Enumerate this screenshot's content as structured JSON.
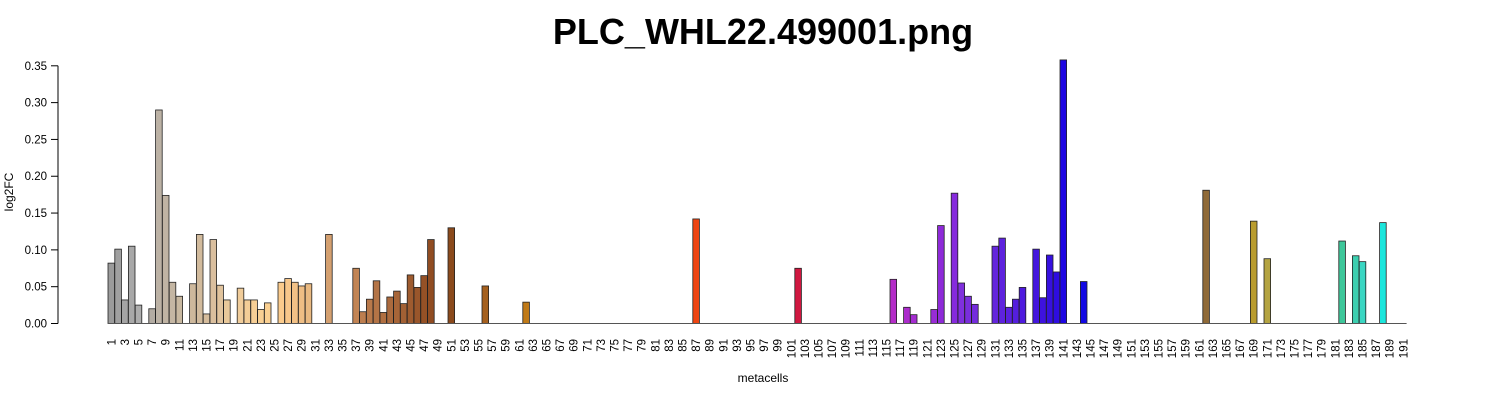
{
  "chart_data": {
    "type": "bar",
    "title": "PLC_WHL22.499001.png",
    "xlabel": "metacells",
    "ylabel": "log2FC",
    "ylim": [
      0,
      0.35
    ],
    "yticks": [
      "0.00",
      "0.05",
      "0.10",
      "0.15",
      "0.20",
      "0.25",
      "0.30",
      "0.35"
    ],
    "n_categories": 191,
    "x_tick_labels": [
      "1",
      "3",
      "5",
      "7",
      "9",
      "11",
      "13",
      "15",
      "17",
      "19",
      "21",
      "23",
      "25",
      "27",
      "29",
      "31",
      "33",
      "35",
      "37",
      "39",
      "41",
      "43",
      "45",
      "47",
      "49",
      "51",
      "53",
      "55",
      "57",
      "59",
      "61",
      "63",
      "65",
      "67",
      "69",
      "71",
      "73",
      "75",
      "77",
      "79",
      "81",
      "83",
      "85",
      "87",
      "89",
      "91",
      "93",
      "95",
      "97",
      "99",
      "101",
      "103",
      "105",
      "107",
      "109",
      "111",
      "113",
      "115",
      "117",
      "119",
      "121",
      "123",
      "125",
      "127",
      "129",
      "131",
      "133",
      "135",
      "137",
      "139",
      "141",
      "143",
      "145",
      "147",
      "149",
      "151",
      "153",
      "155",
      "157",
      "159",
      "161",
      "163",
      "165",
      "167",
      "169",
      "171",
      "173",
      "175",
      "177",
      "179",
      "181",
      "183",
      "185",
      "187",
      "189",
      "191"
    ],
    "bars": [
      {
        "x": 1,
        "y": 0.082,
        "color": "#9b9b9b"
      },
      {
        "x": 2,
        "y": 0.101,
        "color": "#a0a0a0"
      },
      {
        "x": 3,
        "y": 0.032,
        "color": "#a4a4a4"
      },
      {
        "x": 4,
        "y": 0.105,
        "color": "#a8a8a8"
      },
      {
        "x": 5,
        "y": 0.025,
        "color": "#adadad"
      },
      {
        "x": 7,
        "y": 0.02,
        "color": "#b3aca3"
      },
      {
        "x": 8,
        "y": 0.29,
        "color": "#bcb2a5"
      },
      {
        "x": 9,
        "y": 0.174,
        "color": "#c0b4a4"
      },
      {
        "x": 10,
        "y": 0.056,
        "color": "#c4b6a3"
      },
      {
        "x": 11,
        "y": 0.037,
        "color": "#c8b8a0"
      },
      {
        "x": 13,
        "y": 0.054,
        "color": "#cdb89c"
      },
      {
        "x": 14,
        "y": 0.121,
        "color": "#d2bb9d"
      },
      {
        "x": 15,
        "y": 0.013,
        "color": "#d5bc9c"
      },
      {
        "x": 16,
        "y": 0.114,
        "color": "#dabf9e"
      },
      {
        "x": 17,
        "y": 0.052,
        "color": "#e0c39d"
      },
      {
        "x": 18,
        "y": 0.032,
        "color": "#e8c89a"
      },
      {
        "x": 20,
        "y": 0.048,
        "color": "#f0cc9a"
      },
      {
        "x": 21,
        "y": 0.032,
        "color": "#f3cd97"
      },
      {
        "x": 22,
        "y": 0.032,
        "color": "#f6ce95"
      },
      {
        "x": 23,
        "y": 0.019,
        "color": "#f8cf93"
      },
      {
        "x": 24,
        "y": 0.028,
        "color": "#fad092"
      },
      {
        "x": 26,
        "y": 0.056,
        "color": "#fbcb8c"
      },
      {
        "x": 27,
        "y": 0.061,
        "color": "#f8c78a"
      },
      {
        "x": 28,
        "y": 0.056,
        "color": "#f2c186"
      },
      {
        "x": 29,
        "y": 0.051,
        "color": "#eebd84"
      },
      {
        "x": 30,
        "y": 0.054,
        "color": "#e9b981"
      },
      {
        "x": 33,
        "y": 0.121,
        "color": "#d4a070"
      },
      {
        "x": 37,
        "y": 0.075,
        "color": "#c28454"
      },
      {
        "x": 38,
        "y": 0.016,
        "color": "#bd7e4f"
      },
      {
        "x": 39,
        "y": 0.033,
        "color": "#b9794a"
      },
      {
        "x": 40,
        "y": 0.058,
        "color": "#b47446"
      },
      {
        "x": 41,
        "y": 0.015,
        "color": "#b06f41"
      },
      {
        "x": 42,
        "y": 0.036,
        "color": "#ab6a3d"
      },
      {
        "x": 43,
        "y": 0.044,
        "color": "#a76538"
      },
      {
        "x": 44,
        "y": 0.027,
        "color": "#a26034"
      },
      {
        "x": 45,
        "y": 0.066,
        "color": "#9e5b2f"
      },
      {
        "x": 46,
        "y": 0.049,
        "color": "#99562b"
      },
      {
        "x": 47,
        "y": 0.065,
        "color": "#955126"
      },
      {
        "x": 48,
        "y": 0.114,
        "color": "#904c22"
      },
      {
        "x": 51,
        "y": 0.13,
        "color": "#8b4a1c"
      },
      {
        "x": 56,
        "y": 0.051,
        "color": "#a5601e"
      },
      {
        "x": 62,
        "y": 0.029,
        "color": "#c07a18"
      },
      {
        "x": 87,
        "y": 0.142,
        "color": "#ee4512"
      },
      {
        "x": 102,
        "y": 0.075,
        "color": "#d01840"
      },
      {
        "x": 116,
        "y": 0.06,
        "color": "#b42cc8"
      },
      {
        "x": 118,
        "y": 0.022,
        "color": "#ac2ccc"
      },
      {
        "x": 119,
        "y": 0.012,
        "color": "#a42cd0"
      },
      {
        "x": 122,
        "y": 0.019,
        "color": "#982cd6"
      },
      {
        "x": 123,
        "y": 0.133,
        "color": "#8e2ad8"
      },
      {
        "x": 125,
        "y": 0.177,
        "color": "#862add"
      },
      {
        "x": 126,
        "y": 0.055,
        "color": "#8030dd"
      },
      {
        "x": 127,
        "y": 0.037,
        "color": "#7a2edc"
      },
      {
        "x": 128,
        "y": 0.026,
        "color": "#742cdc"
      },
      {
        "x": 131,
        "y": 0.105,
        "color": "#6426dc"
      },
      {
        "x": 132,
        "y": 0.116,
        "color": "#5e22de"
      },
      {
        "x": 133,
        "y": 0.022,
        "color": "#5a20de"
      },
      {
        "x": 134,
        "y": 0.033,
        "color": "#541ede"
      },
      {
        "x": 135,
        "y": 0.049,
        "color": "#4e1ade"
      },
      {
        "x": 137,
        "y": 0.101,
        "color": "#4416de"
      },
      {
        "x": 138,
        "y": 0.035,
        "color": "#3e12df"
      },
      {
        "x": 139,
        "y": 0.093,
        "color": "#3610e0"
      },
      {
        "x": 140,
        "y": 0.07,
        "color": "#2e0ce1"
      },
      {
        "x": 141,
        "y": 0.358,
        "color": "#1e06e2"
      },
      {
        "x": 144,
        "y": 0.057,
        "color": "#1208e4"
      },
      {
        "x": 162,
        "y": 0.181,
        "color": "#8f6a38"
      },
      {
        "x": 169,
        "y": 0.139,
        "color": "#b99c2e"
      },
      {
        "x": 171,
        "y": 0.088,
        "color": "#b4a442"
      },
      {
        "x": 182,
        "y": 0.112,
        "color": "#3ec79a"
      },
      {
        "x": 184,
        "y": 0.092,
        "color": "#3ccfb0"
      },
      {
        "x": 185,
        "y": 0.084,
        "color": "#3ad6c2"
      },
      {
        "x": 188,
        "y": 0.137,
        "color": "#1ce6dc"
      }
    ]
  }
}
